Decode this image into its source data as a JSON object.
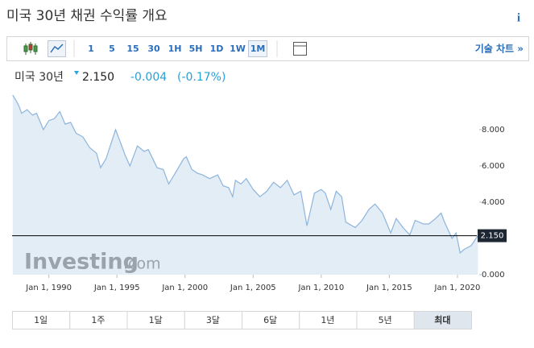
{
  "header": {
    "title": "미국 30년 채권 수익률 개요",
    "info": "i"
  },
  "toolbar": {
    "intervals": [
      "1",
      "5",
      "15",
      "30",
      "1H",
      "5H",
      "1D",
      "1W",
      "1M"
    ],
    "active": 8,
    "tech_chart": "기술 차트 »"
  },
  "quote": {
    "name": "미국 30년",
    "price": "2.150",
    "change": "-0.004",
    "change_pct": "(-0.17%)"
  },
  "logo": {
    "main": "Investing",
    "suffix": ".com"
  },
  "chart_data": {
    "type": "line",
    "color": "#8eb4dc",
    "fill": "#e3edf6",
    "grid": false,
    "x": [
      1987.35,
      1987.6,
      1987.8,
      1988.0,
      1988.4,
      1988.8,
      1989.1,
      1989.6,
      1990.0,
      1990.4,
      1990.8,
      1991.2,
      1991.6,
      1992.0,
      1992.5,
      1993.0,
      1993.5,
      1993.8,
      1994.2,
      1994.9,
      1995.3,
      1995.6,
      1995.95,
      1996.5,
      1997.0,
      1997.3,
      1997.95,
      1998.4,
      1998.8,
      1999.2,
      1999.9,
      2000.1,
      2000.5,
      2000.9,
      2001.3,
      2001.8,
      2002.4,
      2002.8,
      2003.2,
      2003.5,
      2003.7,
      2004.1,
      2004.5,
      2005.0,
      2005.5,
      2006.0,
      2006.5,
      2007.0,
      2007.5,
      2008.0,
      2008.5,
      2008.95,
      2009.5,
      2010.0,
      2010.3,
      2010.7,
      2011.1,
      2011.5,
      2011.8,
      2012.5,
      2013.0,
      2013.5,
      2013.95,
      2014.5,
      2015.1,
      2015.5,
      2016.0,
      2016.5,
      2016.9,
      2017.5,
      2017.9,
      2018.4,
      2018.8,
      2019.0,
      2019.6,
      2019.9,
      2020.2,
      2020.5,
      2021.0,
      2021.5
    ],
    "values": [
      9.9,
      9.6,
      9.3,
      8.9,
      9.1,
      8.8,
      8.9,
      8.0,
      8.5,
      8.6,
      9.0,
      8.3,
      8.4,
      7.8,
      7.6,
      7.0,
      6.7,
      5.9,
      6.4,
      8.0,
      7.2,
      6.6,
      6.0,
      7.1,
      6.8,
      6.9,
      5.9,
      5.8,
      5.0,
      5.5,
      6.4,
      6.5,
      5.8,
      5.6,
      5.5,
      5.3,
      5.5,
      4.9,
      4.8,
      4.3,
      5.2,
      5.0,
      5.3,
      4.7,
      4.3,
      4.6,
      5.1,
      4.8,
      5.2,
      4.4,
      4.6,
      2.7,
      4.5,
      4.7,
      4.5,
      3.6,
      4.6,
      4.3,
      2.9,
      2.6,
      3.0,
      3.6,
      3.9,
      3.4,
      2.3,
      3.1,
      2.6,
      2.2,
      3.0,
      2.8,
      2.8,
      3.1,
      3.4,
      3.0,
      2.0,
      2.3,
      1.2,
      1.4,
      1.6,
      2.15
    ],
    "xlim": [
      1987.3,
      2021.6
    ],
    "ylim": [
      0,
      9.95
    ],
    "xticks": [
      {
        "value": 1990,
        "label": "Jan 1, 1990"
      },
      {
        "value": 1995,
        "label": "Jan 1, 1995"
      },
      {
        "value": 2000,
        "label": "Jan 1, 2000"
      },
      {
        "value": 2005,
        "label": "Jan 1, 2005"
      },
      {
        "value": 2010,
        "label": "Jan 1, 2010"
      },
      {
        "value": 2015,
        "label": "Jan 1, 2015"
      },
      {
        "value": 2020,
        "label": "Jan 1, 2020"
      }
    ],
    "yticks": [
      {
        "value": 0,
        "label": "0.000"
      },
      {
        "value": 2,
        "label": "2.000"
      },
      {
        "value": 4,
        "label": "4.000"
      },
      {
        "value": 6,
        "label": "6.000"
      },
      {
        "value": 8,
        "label": "8.000"
      }
    ],
    "current": {
      "value": 2.15,
      "label": "2.150"
    }
  },
  "ranges": {
    "buttons": [
      "1일",
      "1주",
      "1달",
      "3달",
      "6달",
      "1년",
      "5년",
      "최대"
    ],
    "active": 7
  }
}
